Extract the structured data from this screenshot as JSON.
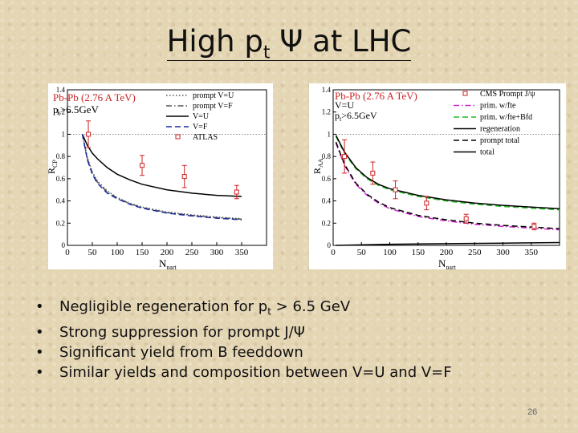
{
  "slide": {
    "title_prefix": "High p",
    "title_sub": "t",
    "title_suffix": " Ψ at LHC",
    "page_number": "26"
  },
  "bullets": [
    {
      "text": "Negligible regeneration for p",
      "sub": "t",
      "tail": " > 6.5 GeV"
    },
    {
      "text": "Strong suppression for prompt J/Ψ",
      "sub": "",
      "tail": ""
    },
    {
      "text": "Significant yield from B feeddown",
      "sub": "",
      "tail": ""
    },
    {
      "text": "Similar yields and composition between V=U and V=F",
      "sub": "",
      "tail": ""
    }
  ],
  "chart_data": [
    {
      "type": "line",
      "system": "Pb-Pb (2.76 A TeV)",
      "cut": "pt>6.5GeV",
      "ylabel": "R_CP",
      "xlabel": "N_part",
      "xlim": [
        0,
        400
      ],
      "ylim": [
        0,
        1.4
      ],
      "xticks": [
        0,
        50,
        100,
        150,
        200,
        250,
        300,
        350
      ],
      "yticks": [
        0,
        0.2,
        0.4,
        0.6,
        0.8,
        1,
        1.2,
        1.4
      ],
      "reference_line": 1,
      "legend_position": "top-right",
      "series": [
        {
          "name": "prompt V=U",
          "style": "dotted",
          "color": "#555555",
          "x": [
            30,
            40,
            50,
            60,
            80,
            100,
            125,
            150,
            200,
            250,
            300,
            350
          ],
          "y": [
            1.0,
            0.79,
            0.66,
            0.58,
            0.49,
            0.43,
            0.38,
            0.345,
            0.3,
            0.275,
            0.255,
            0.24
          ]
        },
        {
          "name": "prompt V=F",
          "style": "dashdot",
          "color": "#555555",
          "x": [
            30,
            40,
            50,
            60,
            80,
            100,
            125,
            150,
            200,
            250,
            300,
            350
          ],
          "y": [
            1.0,
            0.78,
            0.65,
            0.57,
            0.48,
            0.425,
            0.375,
            0.34,
            0.295,
            0.27,
            0.25,
            0.235
          ]
        },
        {
          "name": "V=U",
          "style": "solid",
          "color": "#000000",
          "x": [
            30,
            40,
            50,
            60,
            80,
            100,
            125,
            150,
            200,
            250,
            300,
            350
          ],
          "y": [
            1.0,
            0.9,
            0.83,
            0.78,
            0.7,
            0.64,
            0.59,
            0.55,
            0.5,
            0.47,
            0.45,
            0.44
          ]
        },
        {
          "name": "V=F",
          "style": "dashed",
          "color": "#1a2aa0",
          "x": [
            30,
            40,
            50,
            60,
            80,
            100,
            125,
            150,
            200,
            250,
            300,
            350
          ],
          "y": [
            1.0,
            0.77,
            0.64,
            0.56,
            0.47,
            0.42,
            0.37,
            0.335,
            0.29,
            0.265,
            0.245,
            0.23
          ]
        }
      ],
      "points": [
        {
          "name": "ATLAS",
          "color": "#cc2222",
          "x": [
            42,
            150,
            235,
            340
          ],
          "y": [
            1.0,
            0.72,
            0.62,
            0.48
          ],
          "err": [
            0.12,
            0.09,
            0.1,
            0.06
          ]
        }
      ]
    },
    {
      "type": "line",
      "system": "Pb-Pb (2.76 A TeV)",
      "conditions": [
        "V=U",
        "pt>6.5GeV"
      ],
      "ylabel": "R_AA",
      "xlabel": "N_part",
      "xlim": [
        0,
        400
      ],
      "ylim": [
        0,
        1.4
      ],
      "xticks": [
        0,
        50,
        100,
        150,
        200,
        250,
        300,
        350
      ],
      "yticks": [
        0,
        0.2,
        0.4,
        0.6,
        0.8,
        1,
        1.2,
        1.4
      ],
      "reference_line": 1,
      "legend_position": "top-right",
      "series": [
        {
          "name": "prim. w/fte",
          "style": "dashdot",
          "color": "#cc22cc",
          "x": [
            5,
            20,
            40,
            60,
            80,
            100,
            150,
            200,
            250,
            300,
            350,
            400
          ],
          "y": [
            0.92,
            0.72,
            0.55,
            0.45,
            0.38,
            0.33,
            0.26,
            0.22,
            0.19,
            0.17,
            0.155,
            0.14
          ]
        },
        {
          "name": "prim. w/fte+Bfd",
          "style": "dashed",
          "color": "#22bb22",
          "x": [
            5,
            20,
            40,
            60,
            80,
            100,
            150,
            200,
            250,
            300,
            350,
            400
          ],
          "y": [
            0.98,
            0.83,
            0.69,
            0.6,
            0.54,
            0.5,
            0.44,
            0.4,
            0.37,
            0.35,
            0.335,
            0.32
          ]
        },
        {
          "name": "regeneration",
          "style": "solid",
          "color": "#000000",
          "x": [
            5,
            100,
            200,
            300,
            400
          ],
          "y": [
            0.0,
            0.01,
            0.015,
            0.02,
            0.025
          ]
        },
        {
          "name": "prompt total",
          "style": "dashed",
          "color": "#000000",
          "x": [
            5,
            20,
            40,
            60,
            80,
            100,
            150,
            200,
            250,
            300,
            350,
            400
          ],
          "y": [
            0.93,
            0.73,
            0.56,
            0.46,
            0.39,
            0.34,
            0.27,
            0.23,
            0.2,
            0.18,
            0.165,
            0.15
          ]
        },
        {
          "name": "total",
          "style": "solid",
          "color": "#000000",
          "x": [
            5,
            20,
            40,
            60,
            80,
            100,
            150,
            200,
            250,
            300,
            350,
            400
          ],
          "y": [
            0.99,
            0.84,
            0.7,
            0.61,
            0.55,
            0.51,
            0.45,
            0.41,
            0.38,
            0.36,
            0.345,
            0.33
          ]
        }
      ],
      "points": [
        {
          "name": "CMS Prompt J/ψ",
          "color": "#cc2222",
          "x": [
            20,
            70,
            110,
            165,
            235,
            355
          ],
          "y": [
            0.8,
            0.65,
            0.5,
            0.38,
            0.24,
            0.17
          ],
          "err": [
            0.15,
            0.1,
            0.08,
            0.06,
            0.04,
            0.03
          ]
        }
      ]
    }
  ]
}
